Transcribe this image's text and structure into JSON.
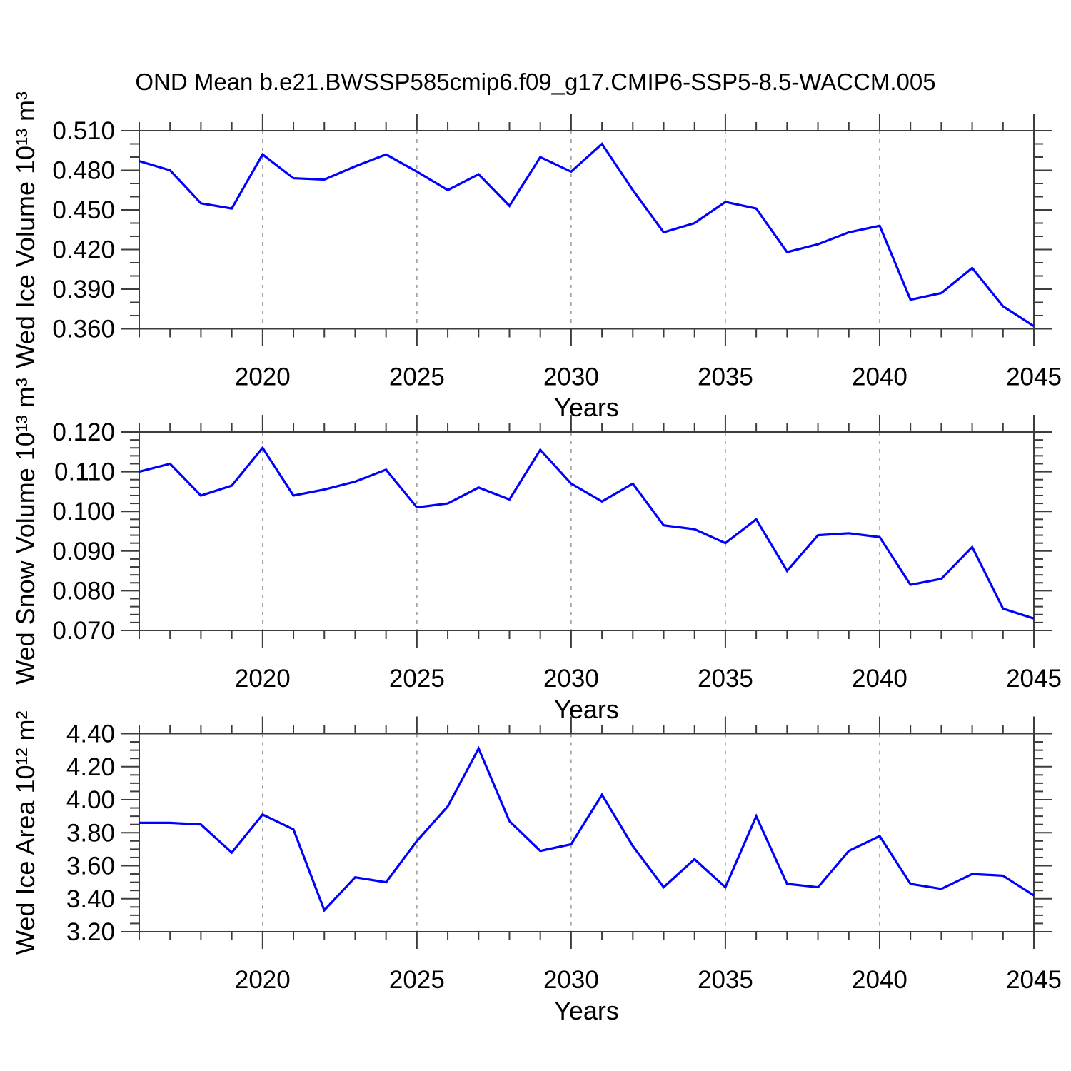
{
  "title": "OND Mean b.e21.BWSSP585cmip6.f09_g17.CMIP6-SSP5-8.5-WACCM.005",
  "colors": {
    "line": "#0000ff",
    "axis": "#3c3c3c",
    "grid": "#9a9a9a",
    "text": "#000000",
    "background": "#ffffff"
  },
  "chart_data": [
    {
      "type": "line",
      "ylabel": "Wed Ice Volume 10¹³ m³",
      "xlabel": "Years",
      "x": [
        2016,
        2017,
        2018,
        2019,
        2020,
        2021,
        2022,
        2023,
        2024,
        2025,
        2026,
        2027,
        2028,
        2029,
        2030,
        2031,
        2032,
        2033,
        2034,
        2035,
        2036,
        2037,
        2038,
        2039,
        2040,
        2041,
        2042,
        2043,
        2044,
        2045
      ],
      "values": [
        0.487,
        0.48,
        0.455,
        0.451,
        0.492,
        0.474,
        0.473,
        0.483,
        0.492,
        0.479,
        0.465,
        0.477,
        0.453,
        0.49,
        0.479,
        0.5,
        0.465,
        0.433,
        0.44,
        0.456,
        0.451,
        0.418,
        0.424,
        0.433,
        0.438,
        0.382,
        0.387,
        0.406,
        0.377,
        0.362
      ],
      "xlim": [
        2016,
        2045
      ],
      "ylim": [
        0.36,
        0.51
      ],
      "xticks": [
        2020,
        2025,
        2030,
        2035,
        2040,
        2045
      ],
      "xtick_labels": [
        "2020",
        "2025",
        "2030",
        "2035",
        "2040",
        "2045"
      ],
      "yticks": [
        0.36,
        0.39,
        0.42,
        0.45,
        0.48,
        0.51
      ],
      "ytick_labels": [
        "0.360",
        "0.390",
        "0.420",
        "0.450",
        "0.480",
        "0.510"
      ],
      "yminor_step": 0.01,
      "xminor_step": 1,
      "grid_x": [
        2020,
        2025,
        2030,
        2035,
        2040
      ],
      "grid_on": true,
      "legend": "none"
    },
    {
      "type": "line",
      "ylabel": "Wed Snow Volume 10¹³ m³",
      "xlabel": "Years",
      "x": [
        2016,
        2017,
        2018,
        2019,
        2020,
        2021,
        2022,
        2023,
        2024,
        2025,
        2026,
        2027,
        2028,
        2029,
        2030,
        2031,
        2032,
        2033,
        2034,
        2035,
        2036,
        2037,
        2038,
        2039,
        2040,
        2041,
        2042,
        2043,
        2044,
        2045
      ],
      "values": [
        0.11,
        0.112,
        0.104,
        0.1065,
        0.116,
        0.104,
        0.1055,
        0.1075,
        0.1105,
        0.101,
        0.102,
        0.106,
        0.103,
        0.1155,
        0.107,
        0.1025,
        0.107,
        0.0965,
        0.0955,
        0.092,
        0.098,
        0.085,
        0.094,
        0.0945,
        0.0935,
        0.0815,
        0.083,
        0.091,
        0.0755,
        0.073
      ],
      "xlim": [
        2016,
        2045
      ],
      "ylim": [
        0.07,
        0.12
      ],
      "xticks": [
        2020,
        2025,
        2030,
        2035,
        2040,
        2045
      ],
      "xtick_labels": [
        "2020",
        "2025",
        "2030",
        "2035",
        "2040",
        "2045"
      ],
      "yticks": [
        0.07,
        0.08,
        0.09,
        0.1,
        0.11,
        0.12
      ],
      "ytick_labels": [
        "0.070",
        "0.080",
        "0.090",
        "0.100",
        "0.110",
        "0.120"
      ],
      "yminor_step": 0.002,
      "xminor_step": 1,
      "grid_x": [
        2020,
        2025,
        2030,
        2035,
        2040
      ],
      "grid_on": true,
      "legend": "none"
    },
    {
      "type": "line",
      "ylabel": "Wed Ice Area 10¹² m²",
      "xlabel": "Years",
      "x": [
        2016,
        2017,
        2018,
        2019,
        2020,
        2021,
        2022,
        2023,
        2024,
        2025,
        2026,
        2027,
        2028,
        2029,
        2030,
        2031,
        2032,
        2033,
        2034,
        2035,
        2036,
        2037,
        2038,
        2039,
        2040,
        2041,
        2042,
        2043,
        2044,
        2045
      ],
      "values": [
        3.86,
        3.86,
        3.85,
        3.68,
        3.91,
        3.82,
        3.33,
        3.53,
        3.5,
        3.75,
        3.96,
        4.31,
        3.87,
        3.69,
        3.73,
        4.03,
        3.72,
        3.47,
        3.64,
        3.47,
        3.9,
        3.49,
        3.47,
        3.69,
        3.78,
        3.49,
        3.46,
        3.55,
        3.54,
        3.42
      ],
      "xlim": [
        2016,
        2045
      ],
      "ylim": [
        3.2,
        4.4
      ],
      "xticks": [
        2020,
        2025,
        2030,
        2035,
        2040,
        2045
      ],
      "xtick_labels": [
        "2020",
        "2025",
        "2030",
        "2035",
        "2040",
        "2045"
      ],
      "yticks": [
        3.2,
        3.4,
        3.6,
        3.8,
        4.0,
        4.2,
        4.4
      ],
      "ytick_labels": [
        "3.20",
        "3.40",
        "3.60",
        "3.80",
        "4.00",
        "4.20",
        "4.40"
      ],
      "yminor_step": 0.05,
      "xminor_step": 1,
      "grid_x": [
        2020,
        2025,
        2030,
        2035,
        2040
      ],
      "grid_on": true,
      "legend": "none"
    }
  ]
}
